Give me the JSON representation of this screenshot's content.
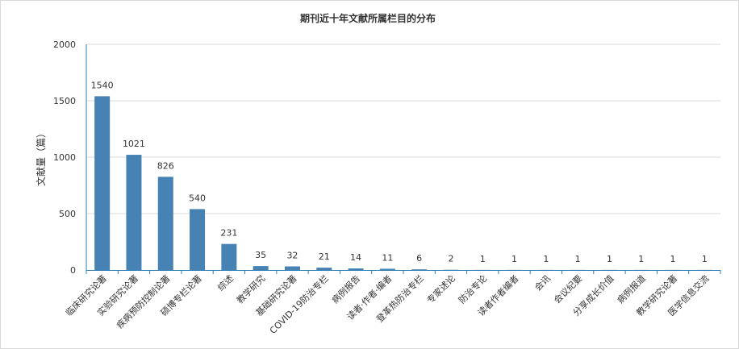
{
  "chart_data": {
    "type": "bar",
    "title": "期刊近十年文献所属栏目的分布",
    "xlabel": "",
    "ylabel": "文献量（篇）",
    "ylim": [
      0,
      2000
    ],
    "yticks": [
      0,
      500,
      1000,
      1500,
      2000
    ],
    "grid": true,
    "bar_color": "#4682b4",
    "categories": [
      "临床研究论著",
      "实验研究论著",
      "疾病预防控制论著",
      "硕博专栏论著",
      "综述",
      "教学研究",
      "基础研究论著",
      "COVID-19防治专栏",
      "病例报告",
      "读者·作者·编者",
      "登革热防治专栏",
      "专家述论",
      "防治专论",
      "读者作者编者",
      "会讯",
      "会议纪要",
      "分享成长价值",
      "病例报道",
      "教学研究论著",
      "医学信息交流"
    ],
    "values": [
      1540,
      1021,
      826,
      540,
      231,
      35,
      32,
      21,
      14,
      11,
      6,
      2,
      1,
      1,
      1,
      1,
      1,
      1,
      1,
      1
    ]
  }
}
